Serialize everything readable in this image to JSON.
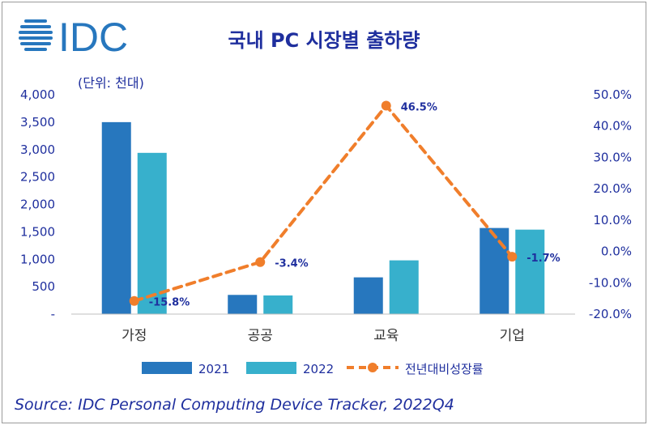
{
  "logo": {
    "text": "IDC"
  },
  "chart_data": {
    "type": "bar",
    "title": "국내 PC 시장별 출하량",
    "unit_label": "(단위: 천대)",
    "categories": [
      "가정",
      "공공",
      "교육",
      "기업"
    ],
    "series": [
      {
        "name": "2021",
        "type": "bar",
        "axis": "left",
        "color": "#2777be",
        "values": [
          3500,
          350,
          670,
          1570
        ]
      },
      {
        "name": "2022",
        "type": "bar",
        "axis": "left",
        "color": "#37b0cc",
        "values": [
          2940,
          340,
          980,
          1540
        ]
      },
      {
        "name": "전년대비성장률",
        "type": "line",
        "axis": "right",
        "color": "#f07e2b",
        "values": [
          -15.8,
          -3.4,
          46.5,
          -1.7
        ],
        "labels": [
          "-15.8%",
          "-3.4%",
          "46.5%",
          "-1.7%"
        ]
      }
    ],
    "y_left": {
      "min": 0,
      "max": 4000,
      "ticks": [
        0,
        500,
        1000,
        1500,
        2000,
        2500,
        3000,
        3500,
        4000
      ],
      "tick_labels": [
        "-",
        "500",
        "1,000",
        "1,500",
        "2,000",
        "2,500",
        "3,000",
        "3,500",
        "4,000"
      ]
    },
    "y_right": {
      "min": -20,
      "max": 50,
      "ticks": [
        -20,
        -10,
        0,
        10,
        20,
        30,
        40,
        50
      ],
      "tick_labels": [
        "-20.0%",
        "-10.0%",
        "0.0%",
        "10.0%",
        "20.0%",
        "30.0%",
        "40.0%",
        "50.0%"
      ]
    },
    "legend_position": "bottom",
    "grid": false
  },
  "source": "Source: IDC Personal Computing Device Tracker, 2022Q4"
}
